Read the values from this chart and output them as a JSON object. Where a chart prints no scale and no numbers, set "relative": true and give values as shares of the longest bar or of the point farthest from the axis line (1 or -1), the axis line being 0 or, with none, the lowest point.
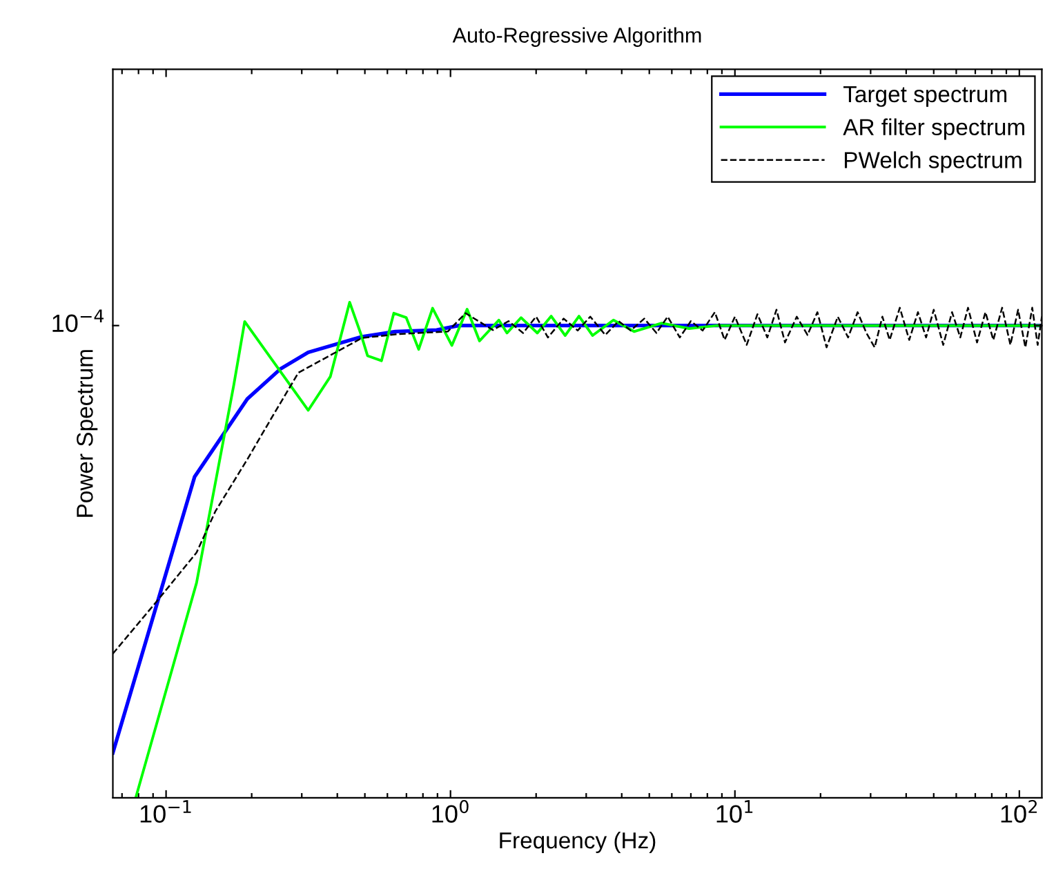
{
  "chart_data": {
    "type": "line",
    "title": "Auto-Regressive Algorithm",
    "xlabel": "Frequency (Hz)",
    "ylabel": "Power Spectrum",
    "log": "x",
    "grid": false,
    "legend": "top right",
    "marker": "none",
    "relative": true,
    "annotations": [
      "10$^{−4}$"
    ],
    "xlim": [
      0.065,
      120
    ],
    "xticks": [
      {
        "value": 0.07,
        "label": null
      },
      {
        "value": 0.08,
        "label": null
      },
      {
        "value": 0.09,
        "label": null
      },
      {
        "value": 0.1,
        "label": "10$^{−1}$"
      },
      {
        "value": 0.2,
        "label": null
      },
      {
        "value": 0.3,
        "label": null
      },
      {
        "value": 0.4,
        "label": null
      },
      {
        "value": 0.5,
        "label": null
      },
      {
        "value": 0.6,
        "label": null
      },
      {
        "value": 0.7,
        "label": null
      },
      {
        "value": 0.8,
        "label": null
      },
      {
        "value": 0.9,
        "label": null
      },
      {
        "value": 1,
        "label": "10$^{0}$"
      },
      {
        "value": 2,
        "label": null
      },
      {
        "value": 3,
        "label": null
      },
      {
        "value": 4,
        "label": null
      },
      {
        "value": 5,
        "label": null
      },
      {
        "value": 6,
        "label": null
      },
      {
        "value": 7,
        "label": null
      },
      {
        "value": 8,
        "label": null
      },
      {
        "value": 9,
        "label": null
      },
      {
        "value": 10,
        "label": "10$^{1}$"
      },
      {
        "value": 20,
        "label": null
      },
      {
        "value": 30,
        "label": null
      },
      {
        "value": 40,
        "label": null
      },
      {
        "value": 50,
        "label": null
      },
      {
        "value": 60,
        "label": null
      },
      {
        "value": 70,
        "label": null
      },
      {
        "value": 80,
        "label": null
      },
      {
        "value": 90,
        "label": null
      },
      {
        "value": 100,
        "label": "10$^{2}$"
      }
    ],
    "series": [
      {
        "name": "Target spectrum",
        "color": "#0000ff",
        "line_style": "solid",
        "x": [
          0.065,
          0.126,
          0.193,
          0.253,
          0.316,
          0.484,
          0.64,
          0.894,
          1.07,
          120
        ],
        "values": [
          0.091,
          0.648,
          0.805,
          0.866,
          0.899,
          0.93,
          0.941,
          0.944,
          0.953,
          0.953
        ]
      },
      {
        "name": "AR filter spectrum",
        "color": "#00ff00",
        "line_style": "solid",
        "x": [
          0.0782,
          0.128,
          0.173,
          0.189,
          0.316,
          0.378,
          0.442,
          0.484,
          0.511,
          0.572,
          0.632,
          0.699,
          0.773,
          0.865,
          1.011,
          1.144,
          1.265,
          1.479,
          1.58,
          1.77,
          2.02,
          2.26,
          2.53,
          2.83,
          3.16,
          3.74,
          4.42,
          5.53,
          6.9,
          8.65,
          101,
          120
        ],
        "values": [
          0.0,
          0.434,
          0.833,
          0.961,
          0.782,
          0.85,
          1.0,
          0.936,
          0.892,
          0.882,
          0.978,
          0.969,
          0.905,
          0.988,
          0.913,
          0.986,
          0.922,
          0.964,
          0.938,
          0.969,
          0.938,
          0.972,
          0.933,
          0.972,
          0.933,
          0.964,
          0.941,
          0.958,
          0.947,
          0.953,
          0.953,
          0.953
        ]
      },
      {
        "name": "PWelch spectrum",
        "color": "#000000",
        "line_style": "dashed",
        "x": [
          0.065,
          0.0935,
          0.128,
          0.149,
          0.193,
          0.234,
          0.292,
          0.489,
          0.661,
          0.978,
          1.13,
          1.41,
          1.6,
          1.8,
          2.0,
          2.2,
          2.5,
          2.8,
          3.1,
          3.5,
          3.9,
          4.3,
          4.8,
          5.3,
          5.8,
          6.4,
          7.0,
          7.7,
          8.5,
          9.2,
          10,
          11,
          12,
          13,
          14,
          15,
          16.5,
          18,
          19.5,
          21,
          23,
          25,
          27,
          29,
          31,
          33,
          35,
          38,
          41,
          44,
          47,
          50,
          54,
          58,
          62,
          66,
          71,
          76,
          81,
          87,
          93,
          99,
          105,
          111,
          116,
          120
        ],
        "values": [
          0.291,
          0.399,
          0.495,
          0.578,
          0.683,
          0.765,
          0.858,
          0.928,
          0.936,
          0.941,
          0.978,
          0.944,
          0.962,
          0.938,
          0.971,
          0.929,
          0.967,
          0.943,
          0.971,
          0.934,
          0.962,
          0.943,
          0.967,
          0.938,
          0.971,
          0.929,
          0.962,
          0.943,
          0.98,
          0.924,
          0.971,
          0.914,
          0.976,
          0.929,
          0.985,
          0.919,
          0.971,
          0.934,
          0.98,
          0.909,
          0.971,
          0.929,
          0.98,
          0.938,
          0.909,
          0.971,
          0.924,
          0.989,
          0.924,
          0.98,
          0.929,
          0.985,
          0.914,
          0.98,
          0.929,
          0.989,
          0.919,
          0.98,
          0.924,
          0.989,
          0.914,
          0.985,
          0.909,
          0.989,
          0.914,
          0.971
        ]
      }
    ]
  }
}
